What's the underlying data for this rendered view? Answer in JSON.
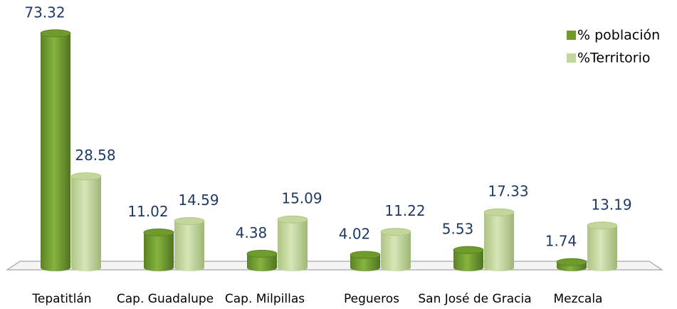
{
  "chart_data": {
    "type": "bar",
    "categories": [
      "Tepatitlán",
      "Cap. Guadalupe",
      "Cap. Milpillas",
      "Pegueros",
      "San José de Gracia",
      "Mezcala"
    ],
    "series": [
      {
        "name": "% población",
        "color": "#6e9b2c",
        "values": [
          73.32,
          11.02,
          4.38,
          4.02,
          5.53,
          1.74
        ]
      },
      {
        "name": "%Territorio",
        "color": "#c3d69b",
        "values": [
          28.58,
          14.59,
          15.09,
          11.22,
          17.33,
          13.19
        ]
      }
    ],
    "legend": "top-right"
  }
}
